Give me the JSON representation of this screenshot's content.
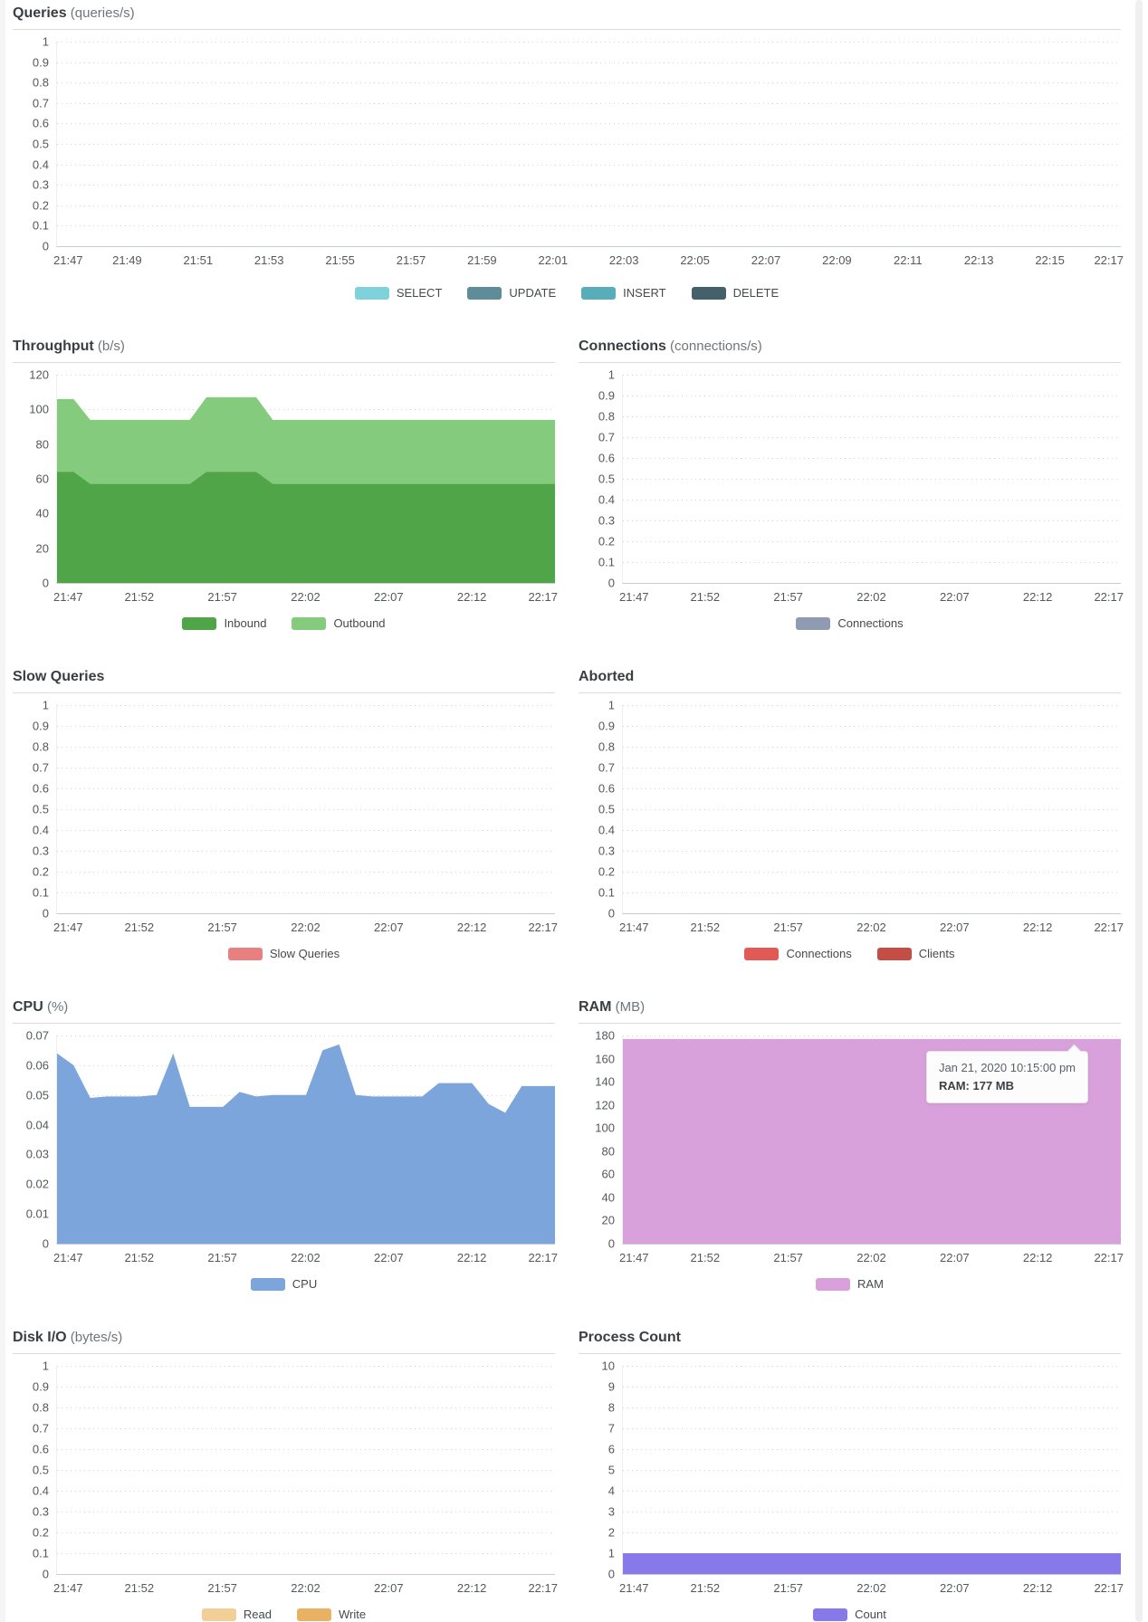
{
  "page": {
    "scrollbar_side": "right"
  },
  "chart_data": [
    {
      "id": "queries",
      "type": "area",
      "span": "full",
      "title": "Queries",
      "unit": "(queries/s)",
      "ylim": [
        0,
        1
      ],
      "ymax": 1,
      "grid": true,
      "legend_position": "bottom",
      "y_ticks": [
        "1",
        "0.9",
        "0.8",
        "0.7",
        "0.6",
        "0.5",
        "0.4",
        "0.3",
        "0.2",
        "0.1",
        "0"
      ],
      "x_tick_labels": [
        "21:47",
        "21:49",
        "21:51",
        "21:53",
        "21:55",
        "21:57",
        "21:59",
        "22:01",
        "22:03",
        "22:05",
        "22:07",
        "22:09",
        "22:11",
        "22:13",
        "22:15",
        "22:17"
      ],
      "series": [
        {
          "name": "SELECT",
          "color": "#7fd2dc",
          "values": []
        },
        {
          "name": "UPDATE",
          "color": "#5e8d99",
          "values": []
        },
        {
          "name": "INSERT",
          "color": "#57aeba",
          "values": []
        },
        {
          "name": "DELETE",
          "color": "#44606b",
          "values": []
        }
      ]
    },
    {
      "id": "throughput",
      "type": "area",
      "span": "half",
      "title": "Throughput",
      "unit": "(b/s)",
      "ylim": [
        0,
        120
      ],
      "ymax": 120,
      "grid": true,
      "stacked": true,
      "legend_position": "bottom",
      "y_ticks": [
        "120",
        "100",
        "80",
        "60",
        "40",
        "20",
        "0"
      ],
      "x_tick_labels": [
        "21:47",
        "21:52",
        "21:57",
        "22:02",
        "22:07",
        "22:12",
        "22:17"
      ],
      "series": [
        {
          "name": "Inbound",
          "color": "#4fa548",
          "values": [
            64,
            64,
            57,
            57,
            57,
            57,
            57,
            57,
            57,
            64,
            64,
            64,
            64,
            57,
            57,
            57,
            57,
            57,
            57,
            57,
            57,
            57,
            57,
            57,
            57,
            57,
            57,
            57,
            57,
            57,
            57
          ]
        },
        {
          "name": "Outbound",
          "color": "#85cb7e",
          "values": [
            42,
            42,
            37,
            37,
            37,
            37,
            37,
            37,
            37,
            43,
            43,
            43,
            43,
            37,
            37,
            37,
            37,
            37,
            37,
            37,
            37,
            37,
            37,
            37,
            37,
            37,
            37,
            37,
            37,
            37,
            37
          ]
        }
      ]
    },
    {
      "id": "connections",
      "type": "area",
      "span": "half",
      "title": "Connections",
      "unit": "(connections/s)",
      "ylim": [
        0,
        1
      ],
      "ymax": 1,
      "grid": true,
      "legend_position": "bottom",
      "y_ticks": [
        "1",
        "0.9",
        "0.8",
        "0.7",
        "0.6",
        "0.5",
        "0.4",
        "0.3",
        "0.2",
        "0.1",
        "0"
      ],
      "x_tick_labels": [
        "21:47",
        "21:52",
        "21:57",
        "22:02",
        "22:07",
        "22:12",
        "22:17"
      ],
      "series": [
        {
          "name": "Connections",
          "color": "#8e9bb3",
          "values": []
        }
      ]
    },
    {
      "id": "slow-queries",
      "type": "area",
      "span": "half",
      "title": "Slow Queries",
      "unit": "",
      "ylim": [
        0,
        1
      ],
      "ymax": 1,
      "grid": true,
      "legend_position": "bottom",
      "y_ticks": [
        "1",
        "0.9",
        "0.8",
        "0.7",
        "0.6",
        "0.5",
        "0.4",
        "0.3",
        "0.2",
        "0.1",
        "0"
      ],
      "x_tick_labels": [
        "21:47",
        "21:52",
        "21:57",
        "22:02",
        "22:07",
        "22:12",
        "22:17"
      ],
      "series": [
        {
          "name": "Slow Queries",
          "color": "#e98080",
          "values": []
        }
      ]
    },
    {
      "id": "aborted",
      "type": "area",
      "span": "half",
      "title": "Aborted",
      "unit": "",
      "ylim": [
        0,
        1
      ],
      "ymax": 1,
      "grid": true,
      "legend_position": "bottom",
      "y_ticks": [
        "1",
        "0.9",
        "0.8",
        "0.7",
        "0.6",
        "0.5",
        "0.4",
        "0.3",
        "0.2",
        "0.1",
        "0"
      ],
      "x_tick_labels": [
        "21:47",
        "21:52",
        "21:57",
        "22:02",
        "22:07",
        "22:12",
        "22:17"
      ],
      "series": [
        {
          "name": "Connections",
          "color": "#e15a55",
          "values": []
        },
        {
          "name": "Clients",
          "color": "#c44d46",
          "values": []
        }
      ]
    },
    {
      "id": "cpu",
      "type": "area",
      "span": "half",
      "title": "CPU",
      "unit": "(%)",
      "ylim": [
        0,
        0.07
      ],
      "ymax": 0.07,
      "grid": true,
      "legend_position": "bottom",
      "y_ticks": [
        "0.07",
        "0.06",
        "0.05",
        "0.04",
        "0.03",
        "0.02",
        "0.01",
        "0"
      ],
      "x_tick_labels": [
        "21:47",
        "21:52",
        "21:57",
        "22:02",
        "22:07",
        "22:12",
        "22:17"
      ],
      "series": [
        {
          "name": "CPU",
          "color": "#7ba5db",
          "values": [
            0.064,
            0.06,
            0.049,
            0.0495,
            0.0495,
            0.0495,
            0.05,
            0.064,
            0.046,
            0.046,
            0.046,
            0.051,
            0.0495,
            0.05,
            0.05,
            0.05,
            0.065,
            0.067,
            0.05,
            0.0495,
            0.0495,
            0.0495,
            0.0495,
            0.054,
            0.054,
            0.054,
            0.047,
            0.044,
            0.053,
            0.053,
            0.053
          ]
        }
      ]
    },
    {
      "id": "ram",
      "type": "area",
      "span": "half",
      "title": "RAM",
      "unit": "(MB)",
      "ylim": [
        0,
        180
      ],
      "ymax": 180,
      "grid": true,
      "legend_position": "bottom",
      "y_ticks": [
        "180",
        "160",
        "140",
        "120",
        "100",
        "80",
        "60",
        "40",
        "20",
        "0"
      ],
      "x_tick_labels": [
        "21:47",
        "21:52",
        "21:57",
        "22:02",
        "22:07",
        "22:12",
        "22:17"
      ],
      "tooltip": {
        "timestamp": "Jan 21, 2020 10:15:00 pm",
        "value_line": "RAM: 177 MB"
      },
      "series": [
        {
          "name": "RAM",
          "color": "#d9a1dc",
          "values": [
            177,
            177,
            177,
            177,
            177,
            177,
            177,
            177,
            177,
            177,
            177,
            177,
            177,
            177,
            177,
            177,
            177,
            177,
            177,
            177,
            177,
            177,
            177,
            177,
            177,
            177,
            177,
            177,
            177,
            177,
            177
          ]
        }
      ]
    },
    {
      "id": "disk-io",
      "type": "area",
      "span": "half",
      "title": "Disk I/O",
      "unit": "(bytes/s)",
      "ylim": [
        0,
        1
      ],
      "ymax": 1,
      "grid": true,
      "legend_position": "bottom",
      "y_ticks": [
        "1",
        "0.9",
        "0.8",
        "0.7",
        "0.6",
        "0.5",
        "0.4",
        "0.3",
        "0.2",
        "0.1",
        "0"
      ],
      "x_tick_labels": [
        "21:47",
        "21:52",
        "21:57",
        "22:02",
        "22:07",
        "22:12",
        "22:17"
      ],
      "series": [
        {
          "name": "Read",
          "color": "#f2cf97",
          "values": []
        },
        {
          "name": "Write",
          "color": "#e9b164",
          "values": []
        }
      ]
    },
    {
      "id": "process-count",
      "type": "area",
      "span": "half",
      "title": "Process Count",
      "unit": "",
      "ylim": [
        0,
        10
      ],
      "ymax": 10,
      "grid": true,
      "legend_position": "bottom",
      "y_ticks": [
        "10",
        "9",
        "8",
        "7",
        "6",
        "5",
        "4",
        "3",
        "2",
        "1",
        "0"
      ],
      "x_tick_labels": [
        "21:47",
        "21:52",
        "21:57",
        "22:02",
        "22:07",
        "22:12",
        "22:17"
      ],
      "series": [
        {
          "name": "Count",
          "color": "#8779e9",
          "values": [
            1,
            1,
            1,
            1,
            1,
            1,
            1,
            1,
            1,
            1,
            1,
            1,
            1,
            1,
            1,
            1,
            1,
            1,
            1,
            1,
            1,
            1,
            1,
            1,
            1,
            1,
            1,
            1,
            1,
            1,
            1
          ]
        }
      ]
    }
  ]
}
